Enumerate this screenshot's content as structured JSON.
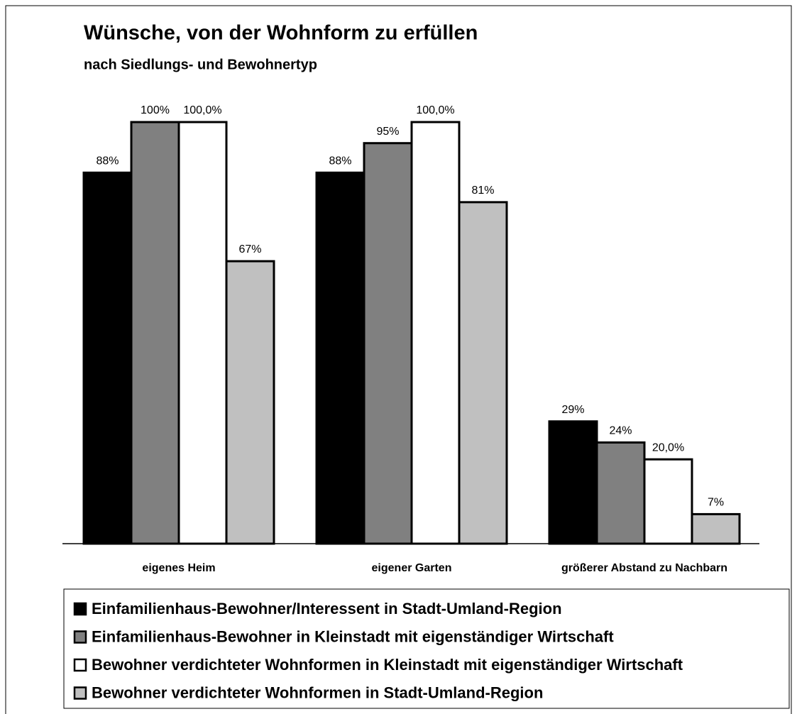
{
  "chart_data": {
    "type": "bar",
    "title": "Wünsche, von der Wohnform zu erfüllen",
    "subtitle": "nach Siedlungs- und Bewohnertyp",
    "categories": [
      "eigenes Heim",
      "eigener Garten",
      "größerer Abstand zu Nachbarn"
    ],
    "ylim": [
      0,
      100
    ],
    "series": [
      {
        "name": "Einfamilienhaus-Bewohner/Interessent in Stadt-Umland-Region",
        "color": "#000000",
        "values": [
          88,
          88,
          29
        ],
        "value_labels": [
          "88%",
          "88%",
          "29%"
        ]
      },
      {
        "name": "Einfamilienhaus-Bewohner in Kleinstadt mit eigenständiger Wirtschaft",
        "color": "#808080",
        "values": [
          100,
          95,
          24
        ],
        "value_labels": [
          "100%",
          "95%",
          "24%"
        ]
      },
      {
        "name": "Bewohner verdichteter Wohnformen in Kleinstadt mit eigenständiger Wirtschaft",
        "color": "#ffffff",
        "values": [
          100,
          100,
          20
        ],
        "value_labels": [
          "100,0%",
          "100,0%",
          "20,0%"
        ]
      },
      {
        "name": "Bewohner verdichteter Wohnformen in Stadt-Umland-Region",
        "color": "#c0c0c0",
        "values": [
          67,
          81,
          7
        ],
        "value_labels": [
          "67%",
          "81%",
          "7%"
        ]
      }
    ]
  }
}
